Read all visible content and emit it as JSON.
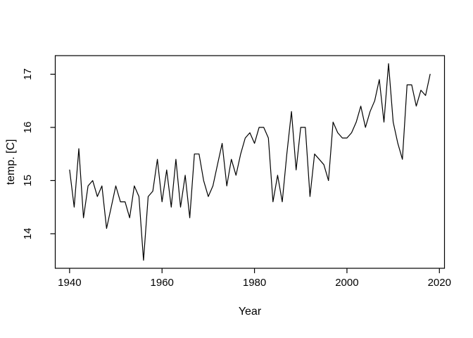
{
  "figure": {
    "title": "",
    "background": "#ffffff"
  },
  "chart_data": {
    "type": "line",
    "title": "",
    "xlabel": "Year",
    "ylabel": "temp. [C]",
    "grid": "off",
    "legend": "none",
    "line_color": "#000000",
    "background": "#ffffff",
    "xlim": [
      1936.9,
      2021.1
    ],
    "ylim": [
      13.35,
      17.35
    ],
    "x_ticks": [
      1940,
      1960,
      1980,
      2000,
      2020
    ],
    "y_ticks": [
      14,
      15,
      16,
      17
    ],
    "x": [
      1940,
      1941,
      1942,
      1943,
      1944,
      1945,
      1946,
      1947,
      1948,
      1949,
      1950,
      1951,
      1952,
      1953,
      1954,
      1955,
      1956,
      1957,
      1958,
      1959,
      1960,
      1961,
      1962,
      1963,
      1964,
      1965,
      1966,
      1967,
      1968,
      1969,
      1970,
      1971,
      1972,
      1973,
      1974,
      1975,
      1976,
      1977,
      1978,
      1979,
      1980,
      1981,
      1982,
      1983,
      1984,
      1985,
      1986,
      1987,
      1988,
      1989,
      1990,
      1991,
      1992,
      1993,
      1994,
      1995,
      1996,
      1997,
      1998,
      1999,
      2000,
      2001,
      2002,
      2003,
      2004,
      2005,
      2006,
      2007,
      2008,
      2009,
      2010,
      2011,
      2012,
      2013,
      2014,
      2015,
      2016,
      2017,
      2018
    ],
    "series": [
      {
        "name": "temperature",
        "values": [
          15.2,
          14.5,
          15.6,
          14.3,
          14.9,
          15.0,
          14.7,
          14.9,
          14.1,
          14.5,
          14.9,
          14.6,
          14.6,
          14.3,
          14.9,
          14.7,
          13.5,
          14.7,
          14.8,
          15.4,
          14.6,
          15.2,
          14.5,
          15.4,
          14.5,
          15.1,
          14.3,
          15.5,
          15.5,
          15.0,
          14.7,
          14.9,
          15.3,
          15.7,
          14.9,
          15.4,
          15.1,
          15.5,
          15.8,
          15.9,
          15.7,
          16.0,
          16.0,
          15.8,
          14.6,
          15.1,
          14.6,
          15.5,
          16.3,
          15.2,
          16.0,
          16.0,
          14.7,
          15.5,
          15.4,
          15.3,
          15.0,
          16.1,
          15.9,
          15.8,
          15.8,
          15.9,
          16.1,
          16.4,
          16.0,
          16.3,
          16.5,
          16.9,
          16.1,
          17.2,
          16.1,
          15.7,
          15.4,
          16.8,
          16.8,
          16.4,
          16.7,
          16.6,
          17.0
        ]
      }
    ]
  }
}
